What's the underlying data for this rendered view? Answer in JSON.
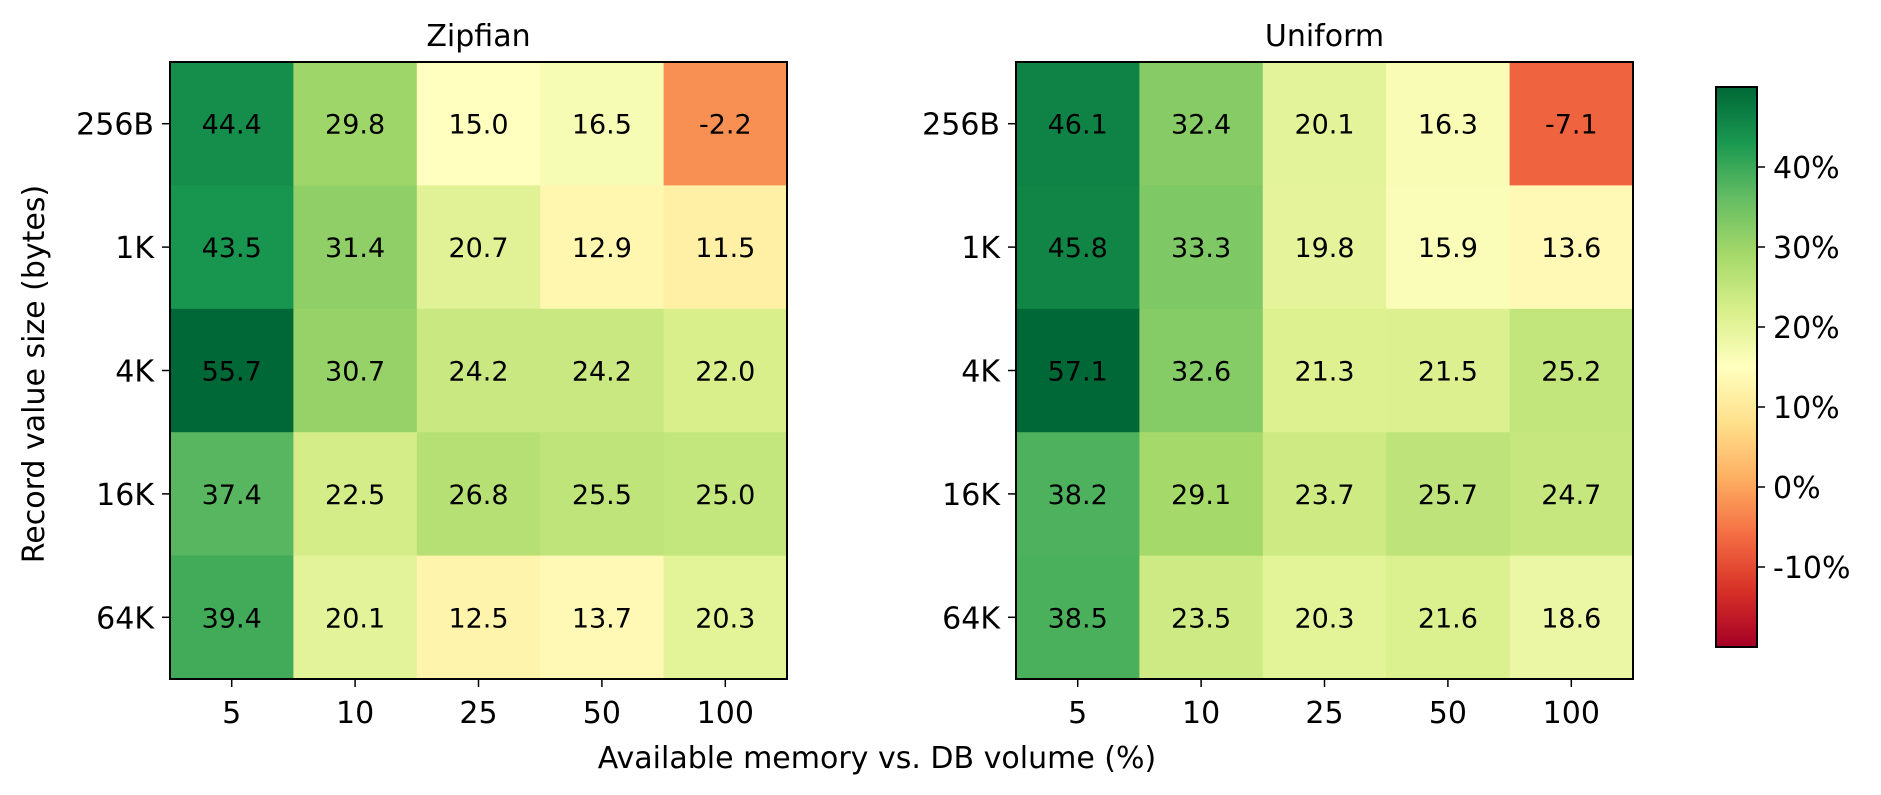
{
  "chart_data": {
    "type": "heatmap",
    "xlabel": "Available memory vs. DB volume (%)",
    "ylabel": "Record value size (bytes)",
    "x_categories": [
      "5",
      "10",
      "25",
      "50",
      "100"
    ],
    "y_categories": [
      "256B",
      "1K",
      "4K",
      "16K",
      "64K"
    ],
    "colormap": "RdYlGn",
    "color_range": [
      -20,
      50
    ],
    "colorbar_ticks": [
      "40%",
      "30%",
      "20%",
      "10%",
      "0%",
      "-10%"
    ],
    "colorbar_tick_values": [
      40,
      30,
      20,
      10,
      0,
      -10
    ],
    "panels": [
      {
        "title": "Zipfian",
        "values": [
          [
            44.4,
            29.8,
            15.0,
            16.5,
            -2.2
          ],
          [
            43.5,
            31.4,
            20.7,
            12.9,
            11.5
          ],
          [
            55.7,
            30.7,
            24.2,
            24.2,
            22.0
          ],
          [
            37.4,
            22.5,
            26.8,
            25.5,
            25.0
          ],
          [
            39.4,
            20.1,
            12.5,
            13.7,
            20.3
          ]
        ]
      },
      {
        "title": "Uniform",
        "values": [
          [
            46.1,
            32.4,
            20.1,
            16.3,
            -7.1
          ],
          [
            45.8,
            33.3,
            19.8,
            15.9,
            13.6
          ],
          [
            57.1,
            32.6,
            21.3,
            21.5,
            25.2
          ],
          [
            38.2,
            29.1,
            23.7,
            25.7,
            24.7
          ],
          [
            38.5,
            23.5,
            20.3,
            21.6,
            18.6
          ]
        ]
      }
    ]
  }
}
